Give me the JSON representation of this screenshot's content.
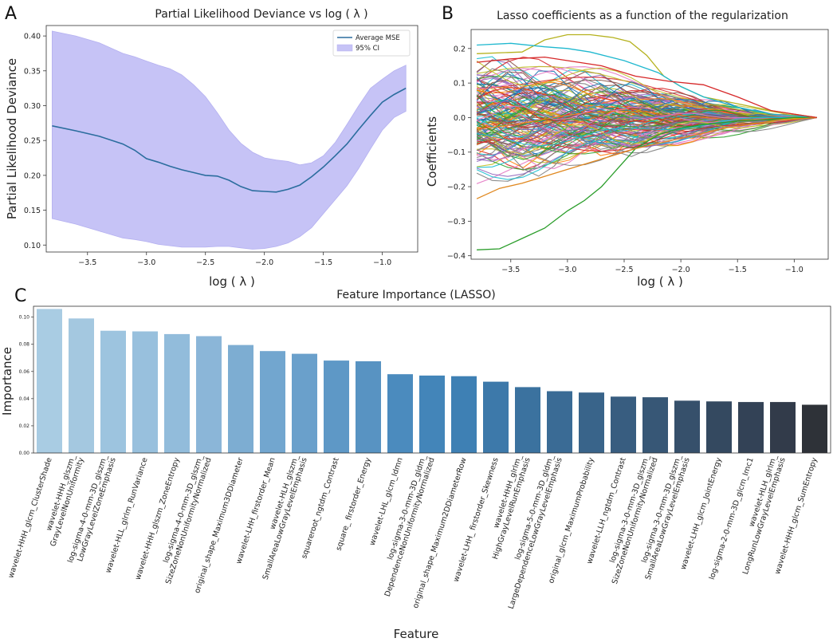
{
  "panels": {
    "a": {
      "letter": "A"
    },
    "b": {
      "letter": "B"
    },
    "c": {
      "letter": "C"
    }
  },
  "chart_data": [
    {
      "id": "A",
      "type": "line",
      "title": "Partial Likelihood Deviance vs log ( λ )",
      "xlabel": "log ( λ )",
      "ylabel": "Partial Likelihood Deviance",
      "xlim": [
        -3.85,
        -0.7
      ],
      "ylim": [
        0.09,
        0.415
      ],
      "xticks": [
        -3.5,
        -3.0,
        -2.5,
        -2.0,
        -1.5,
        -1.0
      ],
      "xtick_labels": [
        "−3.5",
        "−3.0",
        "−2.5",
        "−2.0",
        "−1.5",
        "−1.0"
      ],
      "yticks": [
        0.1,
        0.15,
        0.2,
        0.25,
        0.3,
        0.35,
        0.4
      ],
      "ytick_labels": [
        "0.10",
        "0.15",
        "0.20",
        "0.25",
        "0.30",
        "0.35",
        "0.40"
      ],
      "legend": {
        "position": "top-right",
        "entries": [
          "Average MSE",
          "95% CI"
        ]
      },
      "colors": {
        "line": "#2b6d9e",
        "band": "#c6c3f6",
        "band_edge": "#b4b0f0"
      },
      "series": [
        {
          "name": "Average MSE",
          "x": [
            -3.8,
            -3.6,
            -3.4,
            -3.2,
            -3.1,
            -3.0,
            -2.9,
            -2.8,
            -2.7,
            -2.6,
            -2.5,
            -2.4,
            -2.3,
            -2.2,
            -2.1,
            -2.0,
            -1.9,
            -1.8,
            -1.7,
            -1.6,
            -1.5,
            -1.4,
            -1.3,
            -1.2,
            -1.1,
            -1.0,
            -0.9,
            -0.8
          ],
          "values": [
            0.271,
            0.264,
            0.256,
            0.245,
            0.236,
            0.224,
            0.219,
            0.213,
            0.208,
            0.204,
            0.2,
            0.199,
            0.193,
            0.184,
            0.178,
            0.177,
            0.176,
            0.18,
            0.186,
            0.198,
            0.212,
            0.228,
            0.245,
            0.266,
            0.286,
            0.305,
            0.316,
            0.325
          ]
        }
      ],
      "ci": {
        "name": "95% CI",
        "x": [
          -3.8,
          -3.6,
          -3.4,
          -3.2,
          -3.1,
          -3.0,
          -2.9,
          -2.8,
          -2.7,
          -2.6,
          -2.5,
          -2.4,
          -2.3,
          -2.2,
          -2.1,
          -2.0,
          -1.9,
          -1.8,
          -1.7,
          -1.6,
          -1.5,
          -1.4,
          -1.3,
          -1.2,
          -1.1,
          -1.0,
          -0.9,
          -0.8
        ],
        "upper": [
          0.407,
          0.4,
          0.39,
          0.375,
          0.37,
          0.364,
          0.358,
          0.353,
          0.344,
          0.33,
          0.313,
          0.29,
          0.265,
          0.246,
          0.233,
          0.225,
          0.222,
          0.22,
          0.215,
          0.218,
          0.228,
          0.247,
          0.273,
          0.3,
          0.325,
          0.338,
          0.35,
          0.358
        ],
        "lower": [
          0.138,
          0.13,
          0.12,
          0.11,
          0.108,
          0.105,
          0.101,
          0.099,
          0.097,
          0.097,
          0.097,
          0.098,
          0.098,
          0.096,
          0.094,
          0.095,
          0.098,
          0.103,
          0.112,
          0.125,
          0.145,
          0.165,
          0.185,
          0.21,
          0.238,
          0.265,
          0.283,
          0.292
        ]
      }
    },
    {
      "id": "B",
      "type": "line",
      "title": "Lasso coefficients as a function of the regularization",
      "xlabel": "log ( λ )",
      "ylabel": "Coefficients",
      "xlim": [
        -3.85,
        -0.7
      ],
      "ylim": [
        -0.41,
        0.255
      ],
      "xticks": [
        -3.5,
        -3.0,
        -2.5,
        -2.0,
        -1.5,
        -1.0
      ],
      "xtick_labels": [
        "−3.5",
        "−3.0",
        "−2.5",
        "−2.0",
        "−1.5",
        "−1.0"
      ],
      "yticks": [
        -0.4,
        -0.3,
        -0.2,
        -0.1,
        0.0,
        0.1,
        0.2
      ],
      "ytick_labels": [
        "−0.4",
        "−0.3",
        "−0.2",
        "−0.1",
        "0.0",
        "0.1",
        "0.2"
      ],
      "path_x_start": -3.8,
      "path_x_end": -0.8,
      "highlight_series": [
        {
          "name": "olive",
          "color": "#b5b21f",
          "x": [
            -3.8,
            -3.4,
            -3.2,
            -3.0,
            -2.8,
            -2.6,
            -2.45,
            -2.3,
            -2.15,
            -2.0,
            -1.8,
            -1.5,
            -1.2,
            -1.0,
            -0.8
          ],
          "values": [
            0.185,
            0.19,
            0.225,
            0.24,
            0.24,
            0.232,
            0.22,
            0.18,
            0.12,
            0.09,
            0.06,
            0.04,
            0.02,
            0.01,
            0.0
          ]
        },
        {
          "name": "cyan",
          "color": "#1fb8cf",
          "x": [
            -3.8,
            -3.5,
            -3.2,
            -3.0,
            -2.8,
            -2.5,
            -2.2,
            -2.0,
            -1.8,
            -1.5,
            -1.2,
            -0.8
          ],
          "values": [
            0.21,
            0.215,
            0.205,
            0.2,
            0.19,
            0.165,
            0.13,
            0.09,
            0.06,
            0.03,
            0.01,
            0.0
          ]
        },
        {
          "name": "green",
          "color": "#2a9d2a",
          "x": [
            -3.8,
            -3.6,
            -3.4,
            -3.2,
            -3.0,
            -2.85,
            -2.7,
            -2.55,
            -2.4,
            -2.2,
            -2.0,
            -1.8,
            -1.5,
            -1.2,
            -1.0,
            -0.8
          ],
          "values": [
            -0.383,
            -0.38,
            -0.35,
            -0.32,
            -0.27,
            -0.24,
            -0.2,
            -0.145,
            -0.09,
            -0.05,
            -0.03,
            -0.02,
            -0.01,
            -0.005,
            0.0,
            0.0
          ]
        },
        {
          "name": "orange",
          "color": "#e0881f",
          "x": [
            -3.8,
            -3.6,
            -3.4,
            -3.2,
            -3.0,
            -2.7,
            -2.4,
            -2.0,
            -1.6,
            -1.2,
            -0.8
          ],
          "values": [
            -0.235,
            -0.205,
            -0.19,
            -0.17,
            -0.15,
            -0.12,
            -0.09,
            -0.06,
            -0.03,
            -0.01,
            0.0
          ]
        },
        {
          "name": "red",
          "color": "#d62728",
          "x": [
            -3.8,
            -3.5,
            -3.2,
            -3.0,
            -2.7,
            -2.4,
            -2.1,
            -1.8,
            -1.5,
            -1.2,
            -1.0,
            -0.8
          ],
          "values": [
            0.16,
            0.17,
            0.175,
            0.165,
            0.15,
            0.12,
            0.105,
            0.095,
            0.06,
            0.02,
            0.01,
            0.0
          ]
        }
      ]
    },
    {
      "id": "C",
      "type": "bar",
      "title": "Feature Importance (LASSO)",
      "xlabel": "Feature",
      "ylabel": "Importance",
      "ylim": [
        0,
        0.108
      ],
      "yticks": [
        0.0,
        0.02,
        0.04,
        0.06,
        0.08,
        0.1
      ],
      "ytick_labels": [
        "0.00",
        "0.02",
        "0.04",
        "0.06",
        "0.08",
        "0.10"
      ],
      "categories": [
        [
          "wavelet-HHH_glcm_ClusterShade"
        ],
        [
          "wavelet-HHH_glszm_",
          "GrayLevelNonUniformity"
        ],
        [
          "log-sigma-4-0-mm-3D_glszm_",
          "LowGrayLevelZoneEmphasis"
        ],
        [
          "wavelet-HLL_glrlm_RunVariance"
        ],
        [
          "wavelet-HHH_glszm_ZoneEntropy"
        ],
        [
          "log-sigma-4-0-mm-3D_glszm_",
          "SizeZoneNonUniformityNormalized"
        ],
        [
          "original_shape_Maximum3DDiameter"
        ],
        [
          "wavelet-LHH_firstorder_Mean"
        ],
        [
          "wavelet-HLH_glszm_",
          "SmallAreaLowGrayLevelEmphasis"
        ],
        [
          "squareroot_ngtdm_Contrast"
        ],
        [
          "square_  firstorder_Energy"
        ],
        [
          "wavelet-LHL_glcm_Idmn"
        ],
        [
          "log-sigma-3-0-mm-3D_gldm_",
          "DependenceNonUniformityNormalized"
        ],
        [
          "original_shape_Maximum2DDiameterRow"
        ],
        [
          "wavelet-LHH_  firstorder_Skewness"
        ],
        [
          "wavelet-HHH_glrlm_",
          "HighGrayLevelRunEmphasis"
        ],
        [
          "log-sigma-5-0-mm-3D_gldm_",
          "LargeDependenceLowGrayLevelEmphasis"
        ],
        [
          "original_glcm_MaximumProbability"
        ],
        [
          "wavelet-LLH_ngtdm_Contrast"
        ],
        [
          "log-sigma-3-0-mm-3D_glszm_",
          "SizeZoneNonUniformityNormalized"
        ],
        [
          "log-sigma-3-0-mm-3D_glszm_",
          "SmallAreaLowGrayLevelEmphasis"
        ],
        [
          "wavelet-LHH_glcm_JointEnergy"
        ],
        [
          "log-sigma-2-0-mm-3D_glcm_Imc1"
        ],
        [
          "wavelet-HLH_glrlm_",
          "LongRunLowGrayLevelEmphasis"
        ],
        [
          "wavelet-HHH_glcm_SumEntropy"
        ]
      ],
      "values": [
        0.106,
        0.099,
        0.09,
        0.0895,
        0.0875,
        0.086,
        0.0795,
        0.075,
        0.073,
        0.068,
        0.0675,
        0.058,
        0.057,
        0.0565,
        0.0525,
        0.0485,
        0.0455,
        0.0445,
        0.0415,
        0.041,
        0.0385,
        0.038,
        0.0375,
        0.0375,
        0.0355
      ],
      "colors": [
        "#a9cce3",
        "#a4c8e0",
        "#9dc4df",
        "#98c0dd",
        "#92bcdb",
        "#8bb6d8",
        "#7dadd2",
        "#72a6cf",
        "#6aa0cb",
        "#5e98c6",
        "#5893c2",
        "#4b8bbe",
        "#4385b9",
        "#3e80b4",
        "#3d79aa",
        "#3b729f",
        "#3a6b95",
        "#39648a",
        "#385d80",
        "#375776",
        "#36506b",
        "#344960",
        "#334256",
        "#323b4a",
        "#2e3238"
      ]
    }
  ]
}
